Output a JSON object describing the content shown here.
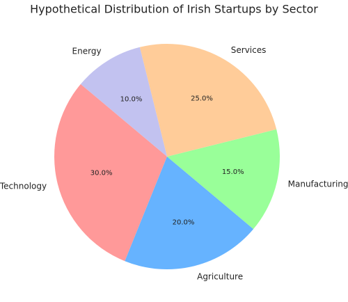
{
  "chart_data": {
    "type": "pie",
    "title": "Hypothetical Distribution of Irish Startups by Sector",
    "categories": [
      "Technology",
      "Agriculture",
      "Manufacturing",
      "Services",
      "Energy"
    ],
    "values": [
      30,
      20,
      15,
      25,
      10
    ],
    "value_labels": [
      "30.0%",
      "20.0%",
      "15.0%",
      "25.0%",
      "10.0%"
    ],
    "colors": [
      "#ff9999",
      "#66b3ff",
      "#99ff99",
      "#ffcc99",
      "#c2c2f0"
    ],
    "start_angle": 140
  }
}
